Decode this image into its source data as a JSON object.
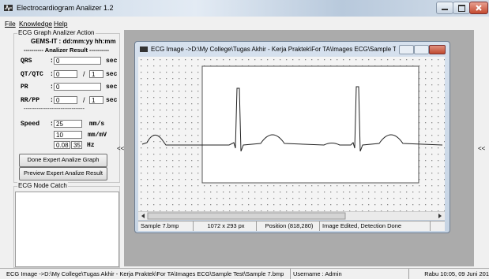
{
  "window": {
    "title": "Electrocardiogram Analizer 1.2"
  },
  "menu": [
    "File",
    "Knowledge",
    "Help"
  ],
  "left_panel": {
    "group_title": "ECG Graph Analizer Action",
    "datetime": "GEMS-IT : dd:mm:yy hh:mm",
    "result_header": "---------- Analizer Result ----------",
    "colon": ":",
    "slash": "/",
    "rows": [
      {
        "label": "QRS",
        "values": [
          "0"
        ],
        "unit": "sec"
      },
      {
        "label": "QT/QTC",
        "values": [
          "0",
          "1"
        ],
        "unit": "sec"
      },
      {
        "label": "PR",
        "values": [
          "0"
        ],
        "unit": "sec"
      },
      {
        "label": "RR/PP",
        "values": [
          "0",
          "1"
        ],
        "unit": "sec"
      }
    ],
    "divider": "---------------------------------",
    "speed_label": "Speed",
    "speed_fields": [
      {
        "values": [
          "25"
        ],
        "unit": "mm/s"
      },
      {
        "values": [
          "10"
        ],
        "unit": "mm/mV"
      },
      {
        "values": [
          "0.08",
          "35"
        ],
        "unit": "Hz"
      }
    ],
    "buttons": [
      "Done Expert Analize Graph",
      "Preview Expert Analize Result"
    ],
    "node_group_title": "ECG Node Catch",
    "collapse": "<<"
  },
  "right_collapse": "<<",
  "child_window": {
    "title": "ECG Image ->D:\\My College\\Tugas Akhir - Kerja Praktek\\For TA\\Images ECG\\Sample Test\\Sa...",
    "status": [
      "Sample 7.bmp",
      "1072 x 293 px",
      "Position (818,280)",
      "Image Edited, Detection Done"
    ]
  },
  "status_bar": [
    "ECG Image ->D:\\My College\\Tugas Akhir - Kerja Praktek\\For TA\\Images ECG\\Sample Test\\Sample 7.bmp",
    "Username : Admin",
    "Rabu 10:05, 09 Juni 201"
  ]
}
